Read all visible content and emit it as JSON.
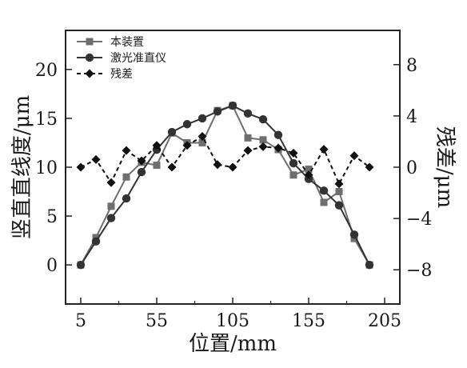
{
  "chart_data": {
    "type": "line",
    "xlabel": "位置/mm",
    "ylabel_left": "竖直直线度/μm",
    "ylabel_right": "残差/μm",
    "xticks": [
      5,
      55,
      105,
      155,
      205
    ],
    "yticks_left": [
      0,
      5,
      10,
      15,
      20
    ],
    "yticks_right": [
      -8,
      -4,
      0,
      4,
      8
    ],
    "xlim": [
      -5,
      215
    ],
    "ylim_left": [
      -4,
      24
    ],
    "ylim_right": [
      -10.67,
      10.67
    ],
    "legend_position": "top-left",
    "series": [
      {
        "name": "本装置",
        "axis": "left",
        "marker": "square",
        "dash": "solid",
        "color": "#6e6e6e",
        "x": [
          5,
          15,
          25,
          35,
          45,
          55,
          65,
          75,
          85,
          95,
          105,
          115,
          125,
          135,
          145,
          155,
          165,
          175,
          185,
          195
        ],
        "y": [
          0,
          2.8,
          6,
          9,
          10.5,
          10.2,
          13.5,
          12.5,
          12.5,
          15.8,
          16.3,
          13,
          12.8,
          11.8,
          9.2,
          9.8,
          6.4,
          7.5,
          2.7,
          0
        ]
      },
      {
        "name": "激光准直仪",
        "axis": "left",
        "marker": "circle",
        "dash": "solid",
        "color": "#333333",
        "x": [
          5,
          15,
          25,
          35,
          45,
          55,
          65,
          75,
          85,
          95,
          105,
          115,
          125,
          135,
          145,
          155,
          165,
          175,
          185,
          195
        ],
        "y": [
          0,
          2.4,
          4.8,
          6.8,
          9.5,
          11.8,
          13.6,
          14.4,
          15,
          15.7,
          16.3,
          15.5,
          14.9,
          13.3,
          10.4,
          8.8,
          7.6,
          6.1,
          3.1,
          0
        ]
      },
      {
        "name": "残差",
        "axis": "right",
        "marker": "diamond",
        "dash": "dashed",
        "color": "#111111",
        "x": [
          5,
          15,
          25,
          35,
          45,
          55,
          65,
          75,
          85,
          95,
          105,
          115,
          125,
          135,
          145,
          155,
          165,
          175,
          185,
          195
        ],
        "y": [
          0,
          0.6,
          -1.2,
          1.3,
          0.5,
          1.7,
          0,
          1.7,
          2.4,
          0.2,
          0,
          1.3,
          1.6,
          1.5,
          1.1,
          -0.6,
          1.4,
          -1.3,
          0.9,
          0
        ]
      }
    ]
  }
}
